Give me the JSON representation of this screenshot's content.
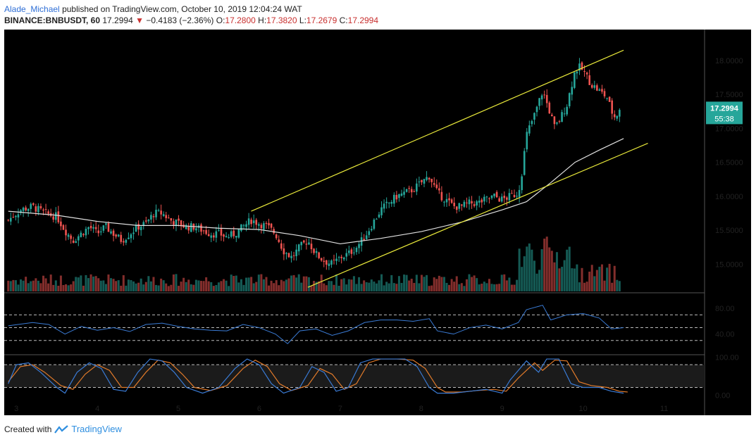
{
  "header": {
    "user": "Alade_Michael",
    "published_text": "published on TradingView.com, October 10, 2019 12:04:24 WAT"
  },
  "ticker": {
    "symbol": "BINANCE:BNBUSDT, 60",
    "last": "17.2994",
    "change": "−0.4183 (−2.36%)",
    "o_label": "O:",
    "o": "17.2800",
    "h_label": "H:",
    "h": "17.3820",
    "l_label": "L:",
    "l": "17.2679",
    "c_label": "C:",
    "c": "17.2994"
  },
  "price_tag": {
    "value": "17.2994",
    "countdown": "55:38"
  },
  "footer": {
    "created": "Created with",
    "brand": "TradingView"
  },
  "colors": {
    "bull": "#26a69a",
    "bear": "#ef5350",
    "ma": "#e0e0e0",
    "channel": "#e8e83a",
    "rsi": "#3a7bd5",
    "stoch_k": "#3a7bd5",
    "stoch_d": "#e07a2a",
    "bg": "#000000"
  },
  "chart_data": {
    "type": "candlestick",
    "x_ticks": [
      "3",
      "4",
      "5",
      "6",
      "7",
      "8",
      "9",
      "10",
      "11"
    ],
    "y_ticks": [
      "18.0000",
      "17.5000",
      "17.0000",
      "16.5000",
      "16.0000",
      "15.5000",
      "15.0000"
    ],
    "ylim": [
      14.6,
      18.35
    ],
    "price_path": [
      [
        2.9,
        15.65
      ],
      [
        3.05,
        15.8
      ],
      [
        3.2,
        15.85
      ],
      [
        3.35,
        15.75
      ],
      [
        3.5,
        15.7
      ],
      [
        3.6,
        15.5
      ],
      [
        3.7,
        15.35
      ],
      [
        3.8,
        15.45
      ],
      [
        3.9,
        15.55
      ],
      [
        4.0,
        15.45
      ],
      [
        4.1,
        15.55
      ],
      [
        4.2,
        15.45
      ],
      [
        4.3,
        15.35
      ],
      [
        4.4,
        15.45
      ],
      [
        4.5,
        15.55
      ],
      [
        4.6,
        15.6
      ],
      [
        4.7,
        15.75
      ],
      [
        4.8,
        15.75
      ],
      [
        4.9,
        15.65
      ],
      [
        5.0,
        15.6
      ],
      [
        5.1,
        15.55
      ],
      [
        5.2,
        15.55
      ],
      [
        5.3,
        15.5
      ],
      [
        5.4,
        15.45
      ],
      [
        5.5,
        15.45
      ],
      [
        5.6,
        15.4
      ],
      [
        5.7,
        15.45
      ],
      [
        5.8,
        15.55
      ],
      [
        5.9,
        15.65
      ],
      [
        6.0,
        15.6
      ],
      [
        6.1,
        15.55
      ],
      [
        6.2,
        15.45
      ],
      [
        6.3,
        15.2
      ],
      [
        6.4,
        15.1
      ],
      [
        6.5,
        15.25
      ],
      [
        6.6,
        15.35
      ],
      [
        6.7,
        15.15
      ],
      [
        6.8,
        15.05
      ],
      [
        6.9,
        15.0
      ],
      [
        7.0,
        15.1
      ],
      [
        7.1,
        15.15
      ],
      [
        7.2,
        15.25
      ],
      [
        7.3,
        15.4
      ],
      [
        7.4,
        15.6
      ],
      [
        7.5,
        15.8
      ],
      [
        7.6,
        15.9
      ],
      [
        7.7,
        16.0
      ],
      [
        7.8,
        16.05
      ],
      [
        7.9,
        16.1
      ],
      [
        8.0,
        16.2
      ],
      [
        8.1,
        16.3
      ],
      [
        8.2,
        16.05
      ],
      [
        8.3,
        15.95
      ],
      [
        8.4,
        15.85
      ],
      [
        8.5,
        15.85
      ],
      [
        8.6,
        15.9
      ],
      [
        8.7,
        15.9
      ],
      [
        8.8,
        15.95
      ],
      [
        8.9,
        16.0
      ],
      [
        9.0,
        15.95
      ],
      [
        9.1,
        16.0
      ],
      [
        9.2,
        16.05
      ],
      [
        9.25,
        16.4
      ],
      [
        9.3,
        16.9
      ],
      [
        9.4,
        17.2
      ],
      [
        9.5,
        17.55
      ],
      [
        9.6,
        17.2
      ],
      [
        9.65,
        17.0
      ],
      [
        9.7,
        17.1
      ],
      [
        9.8,
        17.35
      ],
      [
        9.85,
        17.6
      ],
      [
        9.9,
        17.85
      ],
      [
        9.95,
        17.9
      ],
      [
        10.0,
        17.85
      ],
      [
        10.1,
        17.65
      ],
      [
        10.2,
        17.55
      ],
      [
        10.3,
        17.45
      ],
      [
        10.35,
        17.25
      ],
      [
        10.4,
        17.15
      ],
      [
        10.45,
        17.3
      ]
    ],
    "moving_average": [
      [
        2.9,
        15.78
      ],
      [
        3.5,
        15.72
      ],
      [
        4.0,
        15.63
      ],
      [
        4.5,
        15.57
      ],
      [
        5.0,
        15.57
      ],
      [
        5.5,
        15.53
      ],
      [
        6.0,
        15.51
      ],
      [
        6.5,
        15.42
      ],
      [
        7.0,
        15.3
      ],
      [
        7.5,
        15.38
      ],
      [
        8.0,
        15.48
      ],
      [
        8.5,
        15.62
      ],
      [
        9.0,
        15.8
      ],
      [
        9.3,
        15.92
      ],
      [
        9.6,
        16.2
      ],
      [
        9.9,
        16.5
      ],
      [
        10.2,
        16.68
      ],
      [
        10.5,
        16.85
      ]
    ],
    "channel_upper": [
      [
        5.9,
        15.78
      ],
      [
        10.5,
        18.15
      ]
    ],
    "channel_lower": [
      [
        6.6,
        14.66
      ],
      [
        10.8,
        16.78
      ]
    ],
    "volume_scale_max": 100,
    "rsi": {
      "ticks": [
        "80.00",
        "40.00"
      ],
      "levels": [
        70,
        50,
        30
      ],
      "ylim": [
        10,
        100
      ],
      "values": [
        [
          2.9,
          53
        ],
        [
          3.2,
          58
        ],
        [
          3.4,
          55
        ],
        [
          3.6,
          40
        ],
        [
          3.8,
          52
        ],
        [
          4.0,
          46
        ],
        [
          4.2,
          50
        ],
        [
          4.4,
          44
        ],
        [
          4.6,
          55
        ],
        [
          4.8,
          57
        ],
        [
          5.0,
          52
        ],
        [
          5.2,
          48
        ],
        [
          5.4,
          46
        ],
        [
          5.6,
          45
        ],
        [
          5.8,
          55
        ],
        [
          6.0,
          50
        ],
        [
          6.2,
          40
        ],
        [
          6.35,
          25
        ],
        [
          6.5,
          45
        ],
        [
          6.7,
          48
        ],
        [
          6.9,
          38
        ],
        [
          7.1,
          45
        ],
        [
          7.3,
          58
        ],
        [
          7.5,
          62
        ],
        [
          7.7,
          62
        ],
        [
          7.9,
          60
        ],
        [
          8.1,
          64
        ],
        [
          8.2,
          45
        ],
        [
          8.4,
          40
        ],
        [
          8.6,
          50
        ],
        [
          8.8,
          54
        ],
        [
          9.0,
          48
        ],
        [
          9.2,
          58
        ],
        [
          9.3,
          78
        ],
        [
          9.5,
          85
        ],
        [
          9.6,
          62
        ],
        [
          9.8,
          70
        ],
        [
          10.0,
          72
        ],
        [
          10.2,
          65
        ],
        [
          10.35,
          48
        ],
        [
          10.5,
          50
        ]
      ]
    },
    "stoch": {
      "ticks": [
        "100.00",
        "0.00"
      ],
      "levels": [
        80,
        20
      ],
      "ylim": [
        -5,
        110
      ],
      "k": [
        [
          2.9,
          30
        ],
        [
          3.0,
          80
        ],
        [
          3.15,
          85
        ],
        [
          3.3,
          60
        ],
        [
          3.5,
          20
        ],
        [
          3.6,
          5
        ],
        [
          3.75,
          60
        ],
        [
          3.9,
          85
        ],
        [
          4.05,
          70
        ],
        [
          4.2,
          15
        ],
        [
          4.35,
          10
        ],
        [
          4.5,
          60
        ],
        [
          4.65,
          95
        ],
        [
          4.8,
          90
        ],
        [
          4.95,
          60
        ],
        [
          5.1,
          20
        ],
        [
          5.3,
          5
        ],
        [
          5.5,
          20
        ],
        [
          5.7,
          70
        ],
        [
          5.85,
          95
        ],
        [
          6.0,
          80
        ],
        [
          6.15,
          30
        ],
        [
          6.3,
          5
        ],
        [
          6.5,
          20
        ],
        [
          6.65,
          75
        ],
        [
          6.8,
          60
        ],
        [
          6.95,
          10
        ],
        [
          7.1,
          20
        ],
        [
          7.25,
          85
        ],
        [
          7.4,
          95
        ],
        [
          7.6,
          95
        ],
        [
          7.8,
          95
        ],
        [
          7.95,
          75
        ],
        [
          8.1,
          20
        ],
        [
          8.2,
          5
        ],
        [
          8.4,
          5
        ],
        [
          8.6,
          10
        ],
        [
          8.8,
          15
        ],
        [
          9.0,
          5
        ],
        [
          9.1,
          40
        ],
        [
          9.3,
          90
        ],
        [
          9.45,
          60
        ],
        [
          9.55,
          95
        ],
        [
          9.7,
          95
        ],
        [
          9.85,
          30
        ],
        [
          10.0,
          20
        ],
        [
          10.2,
          20
        ],
        [
          10.35,
          10
        ],
        [
          10.5,
          5
        ]
      ],
      "d": [
        [
          2.9,
          35
        ],
        [
          3.05,
          75
        ],
        [
          3.2,
          80
        ],
        [
          3.35,
          60
        ],
        [
          3.55,
          25
        ],
        [
          3.7,
          15
        ],
        [
          3.85,
          55
        ],
        [
          4.0,
          80
        ],
        [
          4.15,
          65
        ],
        [
          4.3,
          20
        ],
        [
          4.45,
          20
        ],
        [
          4.6,
          60
        ],
        [
          4.75,
          92
        ],
        [
          4.9,
          85
        ],
        [
          5.05,
          55
        ],
        [
          5.2,
          20
        ],
        [
          5.4,
          12
        ],
        [
          5.6,
          25
        ],
        [
          5.8,
          70
        ],
        [
          5.95,
          92
        ],
        [
          6.1,
          75
        ],
        [
          6.25,
          30
        ],
        [
          6.4,
          12
        ],
        [
          6.6,
          25
        ],
        [
          6.75,
          70
        ],
        [
          6.9,
          55
        ],
        [
          7.05,
          15
        ],
        [
          7.2,
          30
        ],
        [
          7.35,
          85
        ],
        [
          7.5,
          95
        ],
        [
          7.7,
          95
        ],
        [
          7.9,
          92
        ],
        [
          8.05,
          70
        ],
        [
          8.2,
          20
        ],
        [
          8.3,
          8
        ],
        [
          8.5,
          8
        ],
        [
          8.7,
          12
        ],
        [
          8.9,
          15
        ],
        [
          9.05,
          10
        ],
        [
          9.2,
          45
        ],
        [
          9.4,
          85
        ],
        [
          9.5,
          65
        ],
        [
          9.65,
          92
        ],
        [
          9.8,
          90
        ],
        [
          9.95,
          35
        ],
        [
          10.1,
          25
        ],
        [
          10.3,
          20
        ],
        [
          10.45,
          10
        ],
        [
          10.55,
          8
        ]
      ]
    }
  }
}
